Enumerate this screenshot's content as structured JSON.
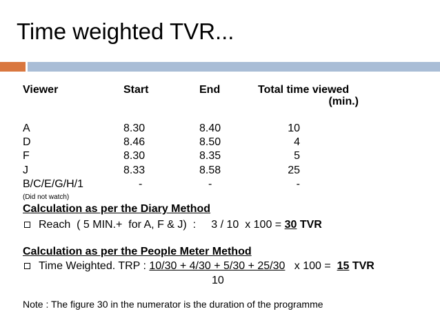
{
  "slide": {
    "title": "Time weighted TVR...",
    "colors": {
      "accent_orange": "#d9773f",
      "accent_blue": "#a9bdd6"
    }
  },
  "table": {
    "headers": {
      "viewer": "Viewer",
      "start": "Start",
      "end": "End",
      "total_line1": "Total time viewed",
      "total_line2": "(min.)"
    },
    "rows": [
      {
        "viewer": "A",
        "start": "8.30",
        "end": "8.40",
        "total": "10"
      },
      {
        "viewer": "D",
        "start": "8.46",
        "end": "8.50",
        "total": "4"
      },
      {
        "viewer": "F",
        "start": "8.30",
        "end": "8.35",
        "total": "5"
      },
      {
        "viewer": "J",
        "start": "8.33",
        "end": "8.58",
        "total": "25"
      },
      {
        "viewer": "B/C/E/G/H/1",
        "start": "-",
        "end": "-",
        "total": "-"
      }
    ],
    "footnote": "(Did not watch)"
  },
  "diary": {
    "heading": "Calculation as per the Diary Method",
    "bullet_prefix": "Reach  ( 5 MIN.+  for A, F & J)  :     3 / 10  x 100 = ",
    "result_value": "30",
    "result_unit": "TVR"
  },
  "people_meter": {
    "heading": "Calculation as per the People Meter Method",
    "bullet_prefix": "Time Weighted. TRP : ",
    "numerator": "10/30 + 4/30 + 5/30 + 25/30",
    "multiplier": "x 100 = ",
    "result_value": "15",
    "result_unit": "TVR",
    "denominator": "10"
  },
  "note": "Note : The figure 30 in the numerator is the duration of the programme"
}
